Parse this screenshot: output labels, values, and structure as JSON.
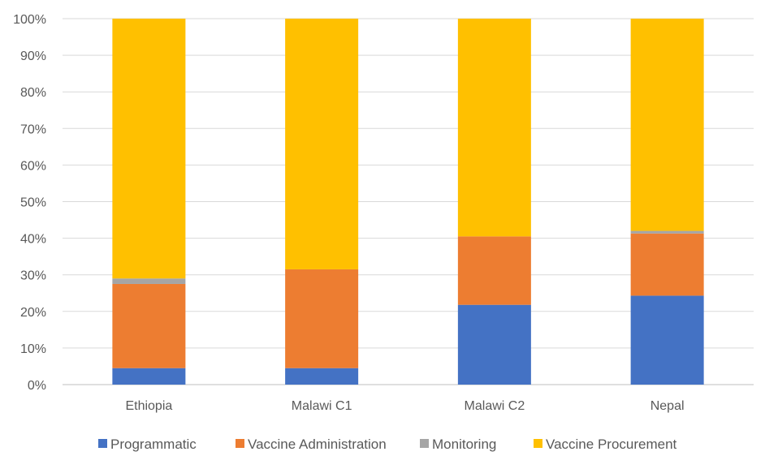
{
  "chart_data": {
    "type": "bar",
    "stacked": true,
    "percent_stacked": true,
    "categories": [
      "Ethiopia",
      "Malawi C1",
      "Malawi C2",
      "Nepal"
    ],
    "series": [
      {
        "name": "Programmatic",
        "color": "#4472C4",
        "values": [
          4.5,
          4.5,
          21.8,
          24.3
        ]
      },
      {
        "name": "Vaccine Administration",
        "color": "#ED7D31",
        "values": [
          23.0,
          27.0,
          18.7,
          17.0
        ]
      },
      {
        "name": "Monitoring",
        "color": "#A5A5A5",
        "values": [
          1.5,
          0.0,
          0.0,
          0.7
        ]
      },
      {
        "name": "Vaccine Procurement",
        "color": "#FFC000",
        "values": [
          71.0,
          68.5,
          59.5,
          58.0
        ]
      }
    ],
    "y_ticks": [
      "0%",
      "10%",
      "20%",
      "30%",
      "40%",
      "50%",
      "60%",
      "70%",
      "80%",
      "90%",
      "100%"
    ],
    "ylim": [
      0,
      100
    ],
    "grid": true,
    "legend_position": "bottom",
    "title": "",
    "xlabel": "",
    "ylabel": ""
  }
}
